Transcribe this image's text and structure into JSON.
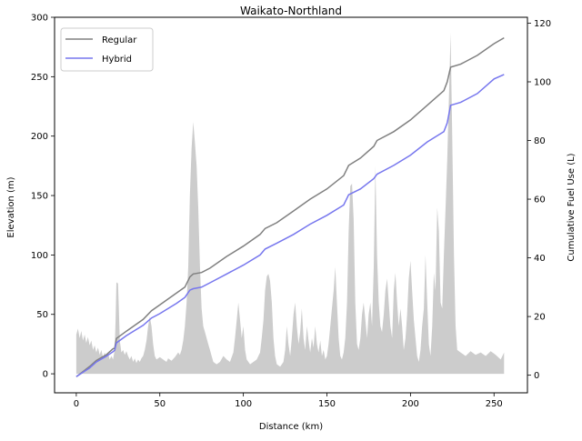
{
  "chart_data": {
    "type": "line",
    "title": "Waikato-Northland",
    "xlabel": "Distance (km)",
    "ylabel": "Elevation (m)",
    "y2label": "Cumulative Fuel Use (L)",
    "xlim": [
      -13,
      270
    ],
    "ylim": [
      -16,
      300
    ],
    "y2lim": [
      -6,
      122
    ],
    "xticks": [
      0,
      50,
      100,
      150,
      200,
      250
    ],
    "yticks": [
      0,
      50,
      100,
      150,
      200,
      250,
      300
    ],
    "y2ticks": [
      0,
      20,
      40,
      60,
      80,
      100,
      120
    ],
    "legend_position": "top-left",
    "grid": false,
    "elevation": {
      "axis": "left",
      "fill_color": "#cccccc",
      "points": [
        [
          0,
          33
        ],
        [
          1,
          38
        ],
        [
          2,
          30
        ],
        [
          3,
          36
        ],
        [
          4,
          28
        ],
        [
          5,
          33
        ],
        [
          6,
          26
        ],
        [
          7,
          31
        ],
        [
          8,
          24
        ],
        [
          9,
          28
        ],
        [
          10,
          20
        ],
        [
          11,
          24
        ],
        [
          12,
          18
        ],
        [
          13,
          22
        ],
        [
          14,
          16
        ],
        [
          15,
          20
        ],
        [
          16,
          14
        ],
        [
          17,
          18
        ],
        [
          18,
          14
        ],
        [
          19,
          18
        ],
        [
          20,
          12
        ],
        [
          21,
          15
        ],
        [
          22,
          12
        ],
        [
          23,
          20
        ],
        [
          23.5,
          45
        ],
        [
          24,
          77
        ],
        [
          25,
          76
        ],
        [
          25.5,
          55
        ],
        [
          26,
          28
        ],
        [
          27,
          18
        ],
        [
          28,
          20
        ],
        [
          29,
          16
        ],
        [
          30,
          19
        ],
        [
          31,
          15
        ],
        [
          32,
          12
        ],
        [
          33,
          15
        ],
        [
          34,
          10
        ],
        [
          35,
          13
        ],
        [
          36,
          9
        ],
        [
          37,
          12
        ],
        [
          38,
          10
        ],
        [
          39,
          13
        ],
        [
          40,
          15
        ],
        [
          41,
          20
        ],
        [
          42,
          28
        ],
        [
          43,
          40
        ],
        [
          44,
          48
        ],
        [
          45,
          40
        ],
        [
          46,
          25
        ],
        [
          47,
          15
        ],
        [
          48,
          12
        ],
        [
          50,
          14
        ],
        [
          52,
          12
        ],
        [
          54,
          10
        ],
        [
          55,
          13
        ],
        [
          57,
          11
        ],
        [
          59,
          14
        ],
        [
          61,
          18
        ],
        [
          62,
          16
        ],
        [
          63,
          20
        ],
        [
          64,
          28
        ],
        [
          65,
          40
        ],
        [
          66,
          60
        ],
        [
          67,
          90
        ],
        [
          68,
          150
        ],
        [
          69,
          190
        ],
        [
          70,
          212
        ],
        [
          71,
          195
        ],
        [
          72,
          175
        ],
        [
          73,
          140
        ],
        [
          74,
          90
        ],
        [
          75,
          55
        ],
        [
          76,
          40
        ],
        [
          77,
          35
        ],
        [
          78,
          30
        ],
        [
          79,
          25
        ],
        [
          80,
          20
        ],
        [
          81,
          15
        ],
        [
          82,
          10
        ],
        [
          84,
          8
        ],
        [
          86,
          10
        ],
        [
          88,
          15
        ],
        [
          90,
          12
        ],
        [
          92,
          10
        ],
        [
          94,
          18
        ],
        [
          95,
          30
        ],
        [
          96,
          45
        ],
        [
          97,
          60
        ],
        [
          98,
          45
        ],
        [
          99,
          30
        ],
        [
          100,
          40
        ],
        [
          101,
          20
        ],
        [
          102,
          12
        ],
        [
          104,
          8
        ],
        [
          106,
          10
        ],
        [
          108,
          12
        ],
        [
          110,
          18
        ],
        [
          111,
          30
        ],
        [
          112,
          45
        ],
        [
          113,
          70
        ],
        [
          114,
          82
        ],
        [
          115,
          84
        ],
        [
          116,
          78
        ],
        [
          117,
          60
        ],
        [
          118,
          30
        ],
        [
          119,
          15
        ],
        [
          120,
          8
        ],
        [
          122,
          6
        ],
        [
          124,
          10
        ],
        [
          125,
          20
        ],
        [
          126,
          40
        ],
        [
          127,
          25
        ],
        [
          128,
          15
        ],
        [
          129,
          30
        ],
        [
          130,
          50
        ],
        [
          131,
          60
        ],
        [
          132,
          40
        ],
        [
          133,
          25
        ],
        [
          134,
          35
        ],
        [
          135,
          55
        ],
        [
          136,
          30
        ],
        [
          137,
          20
        ],
        [
          138,
          40
        ],
        [
          139,
          28
        ],
        [
          140,
          18
        ],
        [
          141,
          30
        ],
        [
          142,
          22
        ],
        [
          143,
          40
        ],
        [
          144,
          25
        ],
        [
          145,
          18
        ],
        [
          146,
          28
        ],
        [
          147,
          15
        ],
        [
          148,
          20
        ],
        [
          149,
          12
        ],
        [
          150,
          15
        ],
        [
          151,
          25
        ],
        [
          152,
          40
        ],
        [
          153,
          55
        ],
        [
          154,
          70
        ],
        [
          155,
          90
        ],
        [
          156,
          60
        ],
        [
          157,
          30
        ],
        [
          158,
          15
        ],
        [
          159,
          12
        ],
        [
          160,
          18
        ],
        [
          161,
          30
        ],
        [
          162,
          60
        ],
        [
          163,
          120
        ],
        [
          164,
          158
        ],
        [
          165,
          160
        ],
        [
          166,
          130
        ],
        [
          167,
          60
        ],
        [
          168,
          25
        ],
        [
          169,
          20
        ],
        [
          170,
          30
        ],
        [
          171,
          50
        ],
        [
          172,
          60
        ],
        [
          173,
          45
        ],
        [
          174,
          30
        ],
        [
          175,
          50
        ],
        [
          176,
          60
        ],
        [
          177,
          40
        ],
        [
          178,
          90
        ],
        [
          179,
          175
        ],
        [
          180,
          100
        ],
        [
          181,
          60
        ],
        [
          182,
          40
        ],
        [
          183,
          35
        ],
        [
          184,
          50
        ],
        [
          185,
          70
        ],
        [
          186,
          80
        ],
        [
          187,
          60
        ],
        [
          188,
          40
        ],
        [
          189,
          30
        ],
        [
          190,
          70
        ],
        [
          191,
          85
        ],
        [
          192,
          60
        ],
        [
          193,
          40
        ],
        [
          194,
          55
        ],
        [
          195,
          40
        ],
        [
          196,
          20
        ],
        [
          197,
          30
        ],
        [
          198,
          50
        ],
        [
          199,
          80
        ],
        [
          200,
          95
        ],
        [
          201,
          70
        ],
        [
          202,
          45
        ],
        [
          203,
          30
        ],
        [
          204,
          15
        ],
        [
          205,
          10
        ],
        [
          206,
          20
        ],
        [
          207,
          40
        ],
        [
          208,
          55
        ],
        [
          209,
          100
        ],
        [
          210,
          60
        ],
        [
          211,
          25
        ],
        [
          212,
          15
        ],
        [
          213,
          40
        ],
        [
          214,
          85
        ],
        [
          215,
          70
        ],
        [
          216,
          140
        ],
        [
          217,
          120
        ],
        [
          218,
          60
        ],
        [
          219,
          55
        ],
        [
          220,
          100
        ],
        [
          221,
          140
        ],
        [
          222,
          180
        ],
        [
          223,
          230
        ],
        [
          224,
          287
        ],
        [
          225,
          200
        ],
        [
          226,
          100
        ],
        [
          227,
          40
        ],
        [
          228,
          20
        ],
        [
          230,
          18
        ],
        [
          233,
          15
        ],
        [
          236,
          19
        ],
        [
          239,
          16
        ],
        [
          242,
          18
        ],
        [
          245,
          15
        ],
        [
          248,
          19
        ],
        [
          251,
          16
        ],
        [
          254,
          12
        ],
        [
          256,
          18
        ]
      ]
    },
    "series": [
      {
        "name": "Regular",
        "axis": "right",
        "color": "#808080",
        "points": [
          [
            0,
            -0.5
          ],
          [
            8,
            3
          ],
          [
            12,
            5
          ],
          [
            18,
            7
          ],
          [
            22,
            9
          ],
          [
            23,
            9.2
          ],
          [
            24,
            12.5
          ],
          [
            30,
            15
          ],
          [
            40,
            19
          ],
          [
            45,
            22
          ],
          [
            50,
            24
          ],
          [
            60,
            28
          ],
          [
            65,
            30
          ],
          [
            68,
            33.5
          ],
          [
            70,
            34.5
          ],
          [
            75,
            35
          ],
          [
            80,
            36.5
          ],
          [
            90,
            40.5
          ],
          [
            100,
            44
          ],
          [
            110,
            48
          ],
          [
            113,
            50
          ],
          [
            120,
            52
          ],
          [
            130,
            56
          ],
          [
            140,
            60
          ],
          [
            150,
            63.5
          ],
          [
            160,
            68
          ],
          [
            163,
            71.5
          ],
          [
            170,
            74
          ],
          [
            178,
            78
          ],
          [
            180,
            80
          ],
          [
            190,
            83
          ],
          [
            200,
            87
          ],
          [
            210,
            92
          ],
          [
            220,
            97
          ],
          [
            222,
            100
          ],
          [
            224,
            105
          ],
          [
            230,
            106
          ],
          [
            240,
            109
          ],
          [
            250,
            113
          ],
          [
            256,
            115
          ]
        ]
      },
      {
        "name": "Hybrid",
        "axis": "right",
        "color": "#7777ee",
        "points": [
          [
            0,
            -0.5
          ],
          [
            8,
            2.5
          ],
          [
            12,
            4.5
          ],
          [
            18,
            6.5
          ],
          [
            22,
            8
          ],
          [
            23,
            8.5
          ],
          [
            24,
            11
          ],
          [
            30,
            13.5
          ],
          [
            40,
            17
          ],
          [
            45,
            19.5
          ],
          [
            50,
            21
          ],
          [
            60,
            24.5
          ],
          [
            65,
            26.5
          ],
          [
            68,
            29
          ],
          [
            70,
            29.5
          ],
          [
            75,
            30
          ],
          [
            80,
            31.5
          ],
          [
            90,
            34.5
          ],
          [
            100,
            37.5
          ],
          [
            110,
            41
          ],
          [
            113,
            43
          ],
          [
            120,
            45
          ],
          [
            130,
            48
          ],
          [
            140,
            51.5
          ],
          [
            150,
            54.5
          ],
          [
            160,
            58
          ],
          [
            163,
            61.5
          ],
          [
            170,
            63.5
          ],
          [
            178,
            67
          ],
          [
            180,
            68.5
          ],
          [
            190,
            71.5
          ],
          [
            200,
            75
          ],
          [
            210,
            79.5
          ],
          [
            220,
            83
          ],
          [
            222,
            86
          ],
          [
            224,
            92
          ],
          [
            230,
            93
          ],
          [
            240,
            96
          ],
          [
            250,
            101
          ],
          [
            256,
            102.5
          ]
        ]
      }
    ]
  }
}
